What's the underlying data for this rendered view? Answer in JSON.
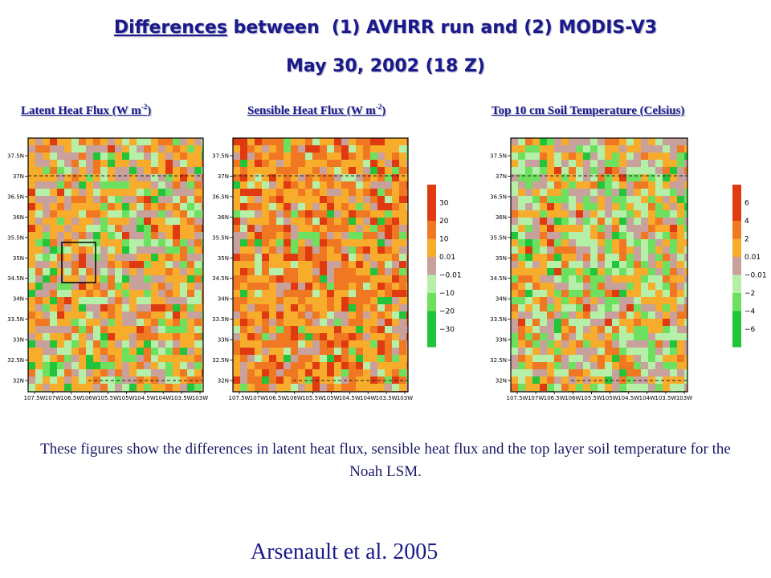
{
  "header": {
    "title_line1_word": "Differences",
    "title_line1_rest": " between  (1) AVHRR run and (2) MODIS-V3",
    "title_line2": "May 30, 2002 (18 Z)"
  },
  "panels": [
    {
      "title": "Latent Heat Flux (W m",
      "exp": "-2",
      "close": ")"
    },
    {
      "title": "Sensible Heat Flux (W m",
      "exp": "-2",
      "close": ")"
    },
    {
      "title": "Top 10 cm Soil Temperature (Celsius)",
      "exp": "",
      "close": ""
    }
  ],
  "caption": "These figures show the differences in latent heat flux, sensible heat flux and the top layer soil temperature for the Noah LSM.",
  "citation": "Arsenault  et al. 2005",
  "colors": {
    "title": "#1a1a8c",
    "bins": [
      "#22c43a",
      "#6ee060",
      "#b6f0a8",
      "#c8a09c",
      "#f8ac2c",
      "#f07822",
      "#e03a10"
    ]
  },
  "chart_data": [
    {
      "type": "heatmap",
      "variable": "Latent Heat Flux (W m-2)",
      "x_ticks": [
        "107.5W",
        "107W",
        "106.5W",
        "106W",
        "105.5W",
        "105W",
        "104.5W",
        "104W",
        "103.5W",
        "103W"
      ],
      "y_ticks": [
        "37.5N",
        "37N",
        "36.5N",
        "36N",
        "35.5N",
        "35N",
        "34.5N",
        "34N",
        "33.5N",
        "33N",
        "32.5N",
        "32N"
      ],
      "colorbar_labels": [
        "30",
        "20",
        "10",
        "0.01",
        "−0.01",
        "−10",
        "−20",
        "−30"
      ],
      "inset_box": true
    },
    {
      "type": "heatmap",
      "variable": "Sensible Heat Flux (W m-2)",
      "x_ticks": [
        "107.5W",
        "107W",
        "106.5W",
        "106W",
        "105.5W",
        "105W",
        "104.5W",
        "104W",
        "103.5W",
        "103W"
      ],
      "y_ticks": [
        "37.5N",
        "37N",
        "36.5N",
        "36N",
        "35.5N",
        "35N",
        "34.5N",
        "34N",
        "33.5N",
        "33N",
        "32.5N",
        "32N"
      ],
      "colorbar_labels": [
        "30",
        "20",
        "10",
        "0.01",
        "−0.01",
        "−10",
        "−20",
        "−30"
      ]
    },
    {
      "type": "heatmap",
      "variable": "Top 10 cm Soil Temperature (Celsius)",
      "x_ticks": [
        "107.5W",
        "107W",
        "106.5W",
        "106W",
        "105.5W",
        "105W",
        "104.5W",
        "104W",
        "103.5W",
        "103W"
      ],
      "y_ticks": [
        "37.5N",
        "37N",
        "36.5N",
        "36N",
        "35.5N",
        "35N",
        "34.5N",
        "34N",
        "33.5N",
        "33N",
        "32.5N",
        "32N"
      ],
      "colorbar_labels": [
        "6",
        "4",
        "2",
        "0.01",
        "−0.01",
        "−2",
        "−4",
        "−6"
      ]
    }
  ]
}
